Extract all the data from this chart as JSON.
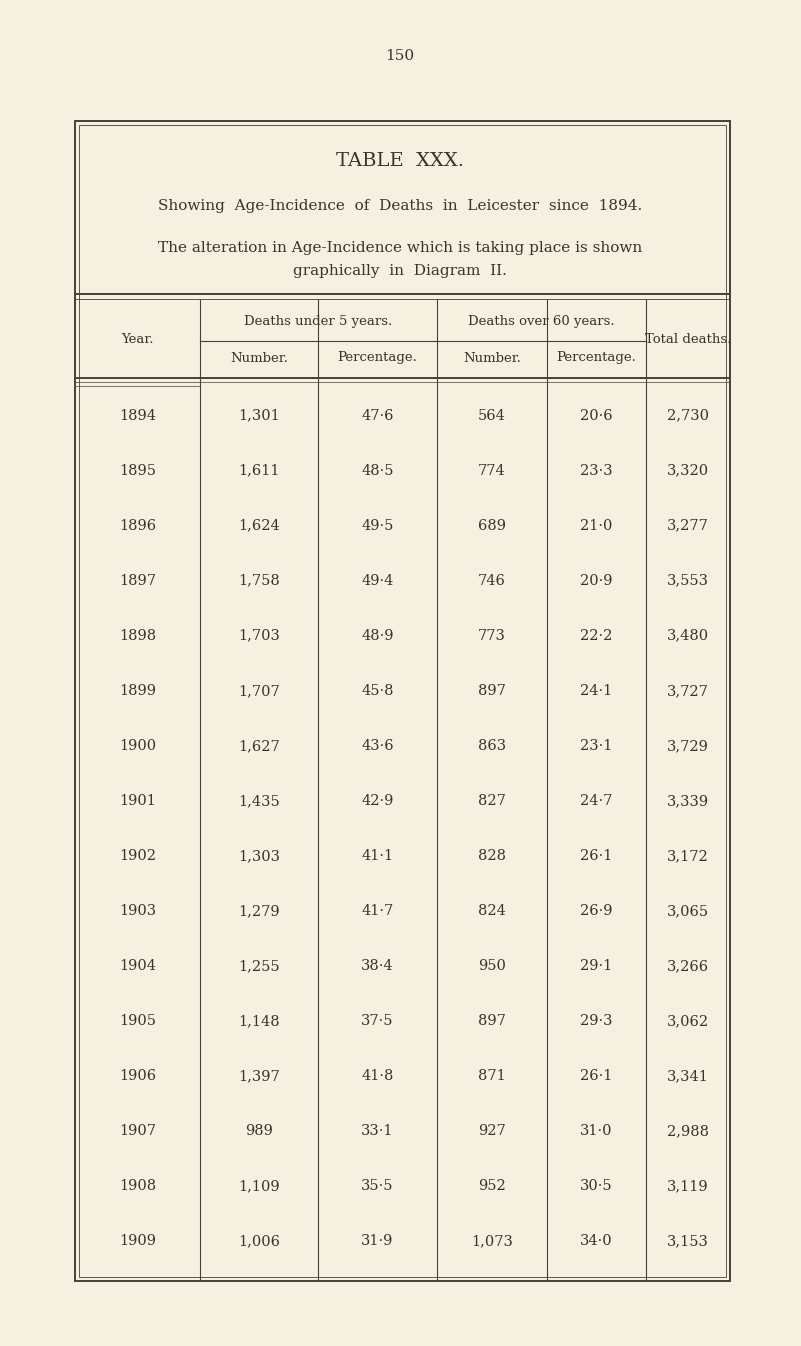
{
  "page_number": "150",
  "table_title": "TABLE  XXX.",
  "subtitle1": "Showing  Age-Incidence  of  Deaths  in  Leicester  since  1894.",
  "subtitle2_line1": "The alteration in Age-Incidence which is taking place is shown",
  "subtitle2_line2": "graphically  in  Diagram  II.",
  "rows": [
    [
      "1894",
      "1,301",
      "47·6",
      "564",
      "20·6",
      "2,730"
    ],
    [
      "1895",
      "1,611",
      "48·5",
      "774",
      "23·3",
      "3,320"
    ],
    [
      "1896",
      "1,624",
      "49·5",
      "689",
      "21·0",
      "3,277"
    ],
    [
      "1897",
      "1,758",
      "49·4",
      "746",
      "20·9",
      "3,553"
    ],
    [
      "1898",
      "1,703",
      "48·9",
      "773",
      "22·2",
      "3,480"
    ],
    [
      "1899",
      "1,707",
      "45·8",
      "897",
      "24·1",
      "3,727"
    ],
    [
      "1900",
      "1,627",
      "43·6",
      "863",
      "23·1",
      "3,729"
    ],
    [
      "1901",
      "1,435",
      "42·9",
      "827",
      "24·7",
      "3,339"
    ],
    [
      "1902",
      "1,303",
      "41·1",
      "828",
      "26·1",
      "3,172"
    ],
    [
      "1903",
      "1,279",
      "41·7",
      "824",
      "26·9",
      "3,065"
    ],
    [
      "1904",
      "1,255",
      "38·4",
      "950",
      "29·1",
      "3,266"
    ],
    [
      "1905",
      "1,148",
      "37·5",
      "897",
      "29·3",
      "3,062"
    ],
    [
      "1906",
      "1,397",
      "41·8",
      "871",
      "26·1",
      "3,341"
    ],
    [
      "1907",
      "989",
      "33·1",
      "927",
      "31·0",
      "2,988"
    ],
    [
      "1908",
      "1,109",
      "35·5",
      "952",
      "30·5",
      "3,119"
    ],
    [
      "1909",
      "1,006",
      "31·9",
      "1,073",
      "34·0",
      "3,153"
    ]
  ],
  "bg_color": "#f5f0e0",
  "text_color": "#3d3228",
  "border_color": "#4a3f35",
  "page_num_fontsize": 11,
  "title_fontsize": 14,
  "subtitle_fontsize": 11,
  "header_fontsize": 9.5,
  "data_fontsize": 10.5
}
